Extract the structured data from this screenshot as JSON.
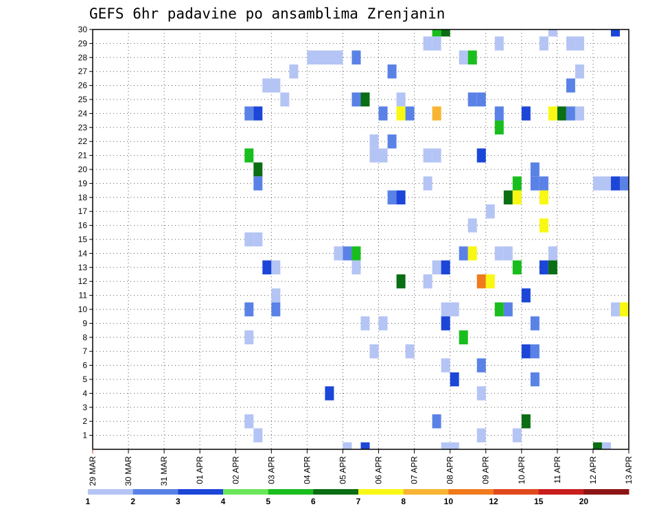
{
  "chart_data": {
    "type": "heatmap",
    "title": "GEFS 6hr padavine po ansamblima Zrenjanin",
    "x_ticks": [
      "29 MAR",
      "30 MAR",
      "31 MAR",
      "01 APR",
      "02 APR",
      "03 APR",
      "04 APR",
      "05 APR",
      "06 APR",
      "07 APR",
      "08 APR",
      "09 APR",
      "10 APR",
      "11 APR",
      "12 APR",
      "13 APR"
    ],
    "xlim": [
      0,
      60
    ],
    "y_ticks": [
      1,
      2,
      3,
      4,
      5,
      6,
      7,
      8,
      9,
      10,
      11,
      12,
      13,
      14,
      15,
      16,
      17,
      18,
      19,
      20,
      21,
      22,
      23,
      24,
      25,
      26,
      27,
      28,
      29,
      30
    ],
    "ylim": [
      0,
      30
    ],
    "grid": true,
    "colorbar": {
      "labels": [
        "1",
        "2",
        "3",
        "4",
        "5",
        "6",
        "7",
        "8",
        "10",
        "12",
        "15",
        "20"
      ],
      "colors": [
        "#b4c4f4",
        "#5a82e6",
        "#1c46d8",
        "#6be65a",
        "#19be1e",
        "#0a6e14",
        "#f8f814",
        "#f8b432",
        "#f07a1c",
        "#e04a1c",
        "#c81e1e",
        "#8c1414"
      ]
    },
    "cells": [
      {
        "x": 38.5,
        "y": 30,
        "level": 5
      },
      {
        "x": 39.5,
        "y": 30,
        "level": 6
      },
      {
        "x": 51.5,
        "y": 30,
        "level": 1
      },
      {
        "x": 58.5,
        "y": 30,
        "level": 3
      },
      {
        "x": 37.5,
        "y": 29,
        "level": 1
      },
      {
        "x": 38.5,
        "y": 29,
        "level": 1
      },
      {
        "x": 45.5,
        "y": 29,
        "level": 1
      },
      {
        "x": 50.5,
        "y": 29,
        "level": 1
      },
      {
        "x": 53.5,
        "y": 29,
        "level": 1
      },
      {
        "x": 54.5,
        "y": 29,
        "level": 1
      },
      {
        "x": 24.5,
        "y": 28,
        "level": 1
      },
      {
        "x": 25.5,
        "y": 28,
        "level": 1
      },
      {
        "x": 26.5,
        "y": 28,
        "level": 1
      },
      {
        "x": 27.5,
        "y": 28,
        "level": 1
      },
      {
        "x": 29.5,
        "y": 28,
        "level": 2
      },
      {
        "x": 41.5,
        "y": 28,
        "level": 1
      },
      {
        "x": 42.5,
        "y": 28,
        "level": 5
      },
      {
        "x": 22.5,
        "y": 27,
        "level": 1
      },
      {
        "x": 33.5,
        "y": 27,
        "level": 2
      },
      {
        "x": 54.5,
        "y": 27,
        "level": 1
      },
      {
        "x": 19.5,
        "y": 26,
        "level": 1
      },
      {
        "x": 20.5,
        "y": 26,
        "level": 1
      },
      {
        "x": 53.5,
        "y": 26,
        "level": 2
      },
      {
        "x": 21.5,
        "y": 25,
        "level": 1
      },
      {
        "x": 29.5,
        "y": 25,
        "level": 2
      },
      {
        "x": 30.5,
        "y": 25,
        "level": 6
      },
      {
        "x": 34.5,
        "y": 25,
        "level": 1
      },
      {
        "x": 42.5,
        "y": 25,
        "level": 2
      },
      {
        "x": 43.5,
        "y": 25,
        "level": 2
      },
      {
        "x": 17.5,
        "y": 24,
        "level": 2
      },
      {
        "x": 18.5,
        "y": 24,
        "level": 3
      },
      {
        "x": 32.5,
        "y": 24,
        "level": 2
      },
      {
        "x": 34.5,
        "y": 24,
        "level": 7
      },
      {
        "x": 35.5,
        "y": 24,
        "level": 2
      },
      {
        "x": 38.5,
        "y": 24,
        "level": 8
      },
      {
        "x": 45.5,
        "y": 24,
        "level": 2
      },
      {
        "x": 48.5,
        "y": 24,
        "level": 3
      },
      {
        "x": 51.5,
        "y": 24,
        "level": 7
      },
      {
        "x": 52.5,
        "y": 24,
        "level": 6
      },
      {
        "x": 53.5,
        "y": 24,
        "level": 2
      },
      {
        "x": 54.5,
        "y": 24,
        "level": 1
      },
      {
        "x": 45.5,
        "y": 23,
        "level": 5
      },
      {
        "x": 31.5,
        "y": 22,
        "level": 1
      },
      {
        "x": 33.5,
        "y": 22,
        "level": 2
      },
      {
        "x": 17.5,
        "y": 21,
        "level": 5
      },
      {
        "x": 31.5,
        "y": 21,
        "level": 1
      },
      {
        "x": 32.5,
        "y": 21,
        "level": 1
      },
      {
        "x": 37.5,
        "y": 21,
        "level": 1
      },
      {
        "x": 38.5,
        "y": 21,
        "level": 1
      },
      {
        "x": 43.5,
        "y": 21,
        "level": 3
      },
      {
        "x": 18.5,
        "y": 20,
        "level": 6
      },
      {
        "x": 49.5,
        "y": 20,
        "level": 2
      },
      {
        "x": 47.5,
        "y": 19,
        "level": 5
      },
      {
        "x": 49.5,
        "y": 19,
        "level": 2
      },
      {
        "x": 50.5,
        "y": 19,
        "level": 2
      },
      {
        "x": 37.5,
        "y": 19,
        "level": 1
      },
      {
        "x": 56.5,
        "y": 19,
        "level": 1
      },
      {
        "x": 57.5,
        "y": 19,
        "level": 1
      },
      {
        "x": 58.5,
        "y": 19,
        "level": 3
      },
      {
        "x": 59.5,
        "y": 19,
        "level": 2
      },
      {
        "x": 18.5,
        "y": 19,
        "level": 2
      },
      {
        "x": 33.5,
        "y": 18,
        "level": 2
      },
      {
        "x": 34.5,
        "y": 18,
        "level": 3
      },
      {
        "x": 46.5,
        "y": 18,
        "level": 6
      },
      {
        "x": 47.5,
        "y": 18,
        "level": 7
      },
      {
        "x": 50.5,
        "y": 18,
        "level": 7
      },
      {
        "x": 44.5,
        "y": 17,
        "level": 1
      },
      {
        "x": 42.5,
        "y": 16,
        "level": 1
      },
      {
        "x": 50.5,
        "y": 16,
        "level": 7
      },
      {
        "x": 17.5,
        "y": 15,
        "level": 1
      },
      {
        "x": 18.5,
        "y": 15,
        "level": 1
      },
      {
        "x": 27.5,
        "y": 14,
        "level": 1
      },
      {
        "x": 28.5,
        "y": 14,
        "level": 2
      },
      {
        "x": 29.5,
        "y": 14,
        "level": 5
      },
      {
        "x": 41.5,
        "y": 14,
        "level": 2
      },
      {
        "x": 42.5,
        "y": 14,
        "level": 7
      },
      {
        "x": 45.5,
        "y": 14,
        "level": 1
      },
      {
        "x": 46.5,
        "y": 14,
        "level": 1
      },
      {
        "x": 51.5,
        "y": 14,
        "level": 1
      },
      {
        "x": 19.5,
        "y": 13,
        "level": 3
      },
      {
        "x": 20.5,
        "y": 13,
        "level": 1
      },
      {
        "x": 29.5,
        "y": 13,
        "level": 1
      },
      {
        "x": 38.5,
        "y": 13,
        "level": 1
      },
      {
        "x": 39.5,
        "y": 13,
        "level": 3
      },
      {
        "x": 47.5,
        "y": 13,
        "level": 5
      },
      {
        "x": 50.5,
        "y": 13,
        "level": 3
      },
      {
        "x": 51.5,
        "y": 13,
        "level": 6
      },
      {
        "x": 34.5,
        "y": 12,
        "level": 6
      },
      {
        "x": 37.5,
        "y": 12,
        "level": 1
      },
      {
        "x": 43.5,
        "y": 12,
        "level": 9
      },
      {
        "x": 44.5,
        "y": 12,
        "level": 7
      },
      {
        "x": 20.5,
        "y": 11,
        "level": 1
      },
      {
        "x": 48.5,
        "y": 11,
        "level": 3
      },
      {
        "x": 17.5,
        "y": 10,
        "level": 2
      },
      {
        "x": 20.5,
        "y": 10,
        "level": 2
      },
      {
        "x": 39.5,
        "y": 10,
        "level": 1
      },
      {
        "x": 40.5,
        "y": 10,
        "level": 1
      },
      {
        "x": 45.5,
        "y": 10,
        "level": 5
      },
      {
        "x": 46.5,
        "y": 10,
        "level": 2
      },
      {
        "x": 58.5,
        "y": 10,
        "level": 1
      },
      {
        "x": 59.5,
        "y": 10,
        "level": 7
      },
      {
        "x": 30.5,
        "y": 9,
        "level": 1
      },
      {
        "x": 32.5,
        "y": 9,
        "level": 1
      },
      {
        "x": 39.5,
        "y": 9,
        "level": 3
      },
      {
        "x": 49.5,
        "y": 9,
        "level": 2
      },
      {
        "x": 17.5,
        "y": 8,
        "level": 1
      },
      {
        "x": 41.5,
        "y": 8,
        "level": 5
      },
      {
        "x": 31.5,
        "y": 7,
        "level": 1
      },
      {
        "x": 35.5,
        "y": 7,
        "level": 1
      },
      {
        "x": 48.5,
        "y": 7,
        "level": 3
      },
      {
        "x": 49.5,
        "y": 7,
        "level": 2
      },
      {
        "x": 39.5,
        "y": 6,
        "level": 1
      },
      {
        "x": 43.5,
        "y": 6,
        "level": 2
      },
      {
        "x": 40.5,
        "y": 5,
        "level": 3
      },
      {
        "x": 49.5,
        "y": 5,
        "level": 2
      },
      {
        "x": 26.5,
        "y": 4,
        "level": 3
      },
      {
        "x": 43.5,
        "y": 4,
        "level": 1
      },
      {
        "x": 17.5,
        "y": 2,
        "level": 1
      },
      {
        "x": 38.5,
        "y": 2,
        "level": 2
      },
      {
        "x": 48.5,
        "y": 2,
        "level": 6
      },
      {
        "x": 18.5,
        "y": 1,
        "level": 1
      },
      {
        "x": 43.5,
        "y": 1,
        "level": 1
      },
      {
        "x": 47.5,
        "y": 1,
        "level": 1
      },
      {
        "x": 28.5,
        "y": 0,
        "level": 1
      },
      {
        "x": 30.5,
        "y": 0,
        "level": 3
      },
      {
        "x": 39.5,
        "y": 0,
        "level": 1
      },
      {
        "x": 40.5,
        "y": 0,
        "level": 1
      },
      {
        "x": 56.5,
        "y": 0,
        "level": 6
      },
      {
        "x": 57.5,
        "y": 0,
        "level": 1
      }
    ]
  }
}
